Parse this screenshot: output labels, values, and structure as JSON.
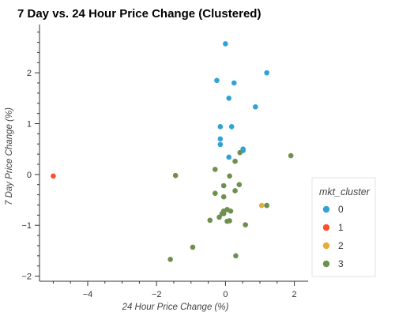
{
  "chart_data": {
    "type": "scatter",
    "title": "7 Day vs. 24 Hour Price Change (Clustered)",
    "xlabel": "24 Hour Price Change (%)",
    "ylabel": "7 Day Price Change (%)",
    "xlim": [
      -5.4,
      2.4
    ],
    "ylim": [
      -2.1,
      2.95
    ],
    "xticks": [
      -4,
      -2,
      0,
      2
    ],
    "xtick_labels": [
      "−4",
      "−2",
      "0",
      "2"
    ],
    "yticks": [
      -2,
      -1,
      0,
      1,
      2
    ],
    "ytick_labels": [
      "−2",
      "−1",
      "0",
      "1",
      "2"
    ],
    "grid": false,
    "legend": {
      "title": "mkt_cluster",
      "placement": "right",
      "entries": [
        "0",
        "1",
        "2",
        "3"
      ]
    },
    "series": [
      {
        "name": "0",
        "color": "#30a2da",
        "points": [
          [
            0.0,
            2.57
          ],
          [
            1.2,
            2.0
          ],
          [
            -0.25,
            1.85
          ],
          [
            0.25,
            1.8
          ],
          [
            0.1,
            1.5
          ],
          [
            0.87,
            1.33
          ],
          [
            -0.15,
            0.94
          ],
          [
            0.18,
            0.94
          ],
          [
            -0.15,
            0.7
          ],
          [
            -0.15,
            0.59
          ],
          [
            0.51,
            0.5
          ],
          [
            0.51,
            0.47
          ],
          [
            0.1,
            0.34
          ]
        ]
      },
      {
        "name": "1",
        "color": "#fc4f30",
        "points": [
          [
            -5.0,
            -0.03
          ]
        ]
      },
      {
        "name": "2",
        "color": "#e5ae38",
        "points": [
          [
            1.05,
            -0.61
          ]
        ]
      },
      {
        "name": "3",
        "color": "#6d904f",
        "points": [
          [
            1.9,
            0.37
          ],
          [
            0.42,
            0.43
          ],
          [
            0.28,
            0.26
          ],
          [
            -0.3,
            0.1
          ],
          [
            -1.45,
            -0.02
          ],
          [
            0.12,
            -0.03
          ],
          [
            -0.05,
            -0.22
          ],
          [
            0.4,
            -0.2
          ],
          [
            -0.3,
            -0.37
          ],
          [
            0.28,
            -0.32
          ],
          [
            -0.05,
            -0.44
          ],
          [
            1.2,
            -0.61
          ],
          [
            0.05,
            -0.69
          ],
          [
            -0.05,
            -0.72
          ],
          [
            0.15,
            -0.72
          ],
          [
            -0.1,
            -0.77
          ],
          [
            -0.18,
            -0.84
          ],
          [
            -0.05,
            -0.77
          ],
          [
            -0.45,
            -0.9
          ],
          [
            0.12,
            -0.91
          ],
          [
            0.05,
            -0.92
          ],
          [
            0.58,
            -0.99
          ],
          [
            -0.95,
            -1.43
          ],
          [
            0.3,
            -1.6
          ],
          [
            -1.6,
            -1.67
          ]
        ]
      }
    ]
  }
}
